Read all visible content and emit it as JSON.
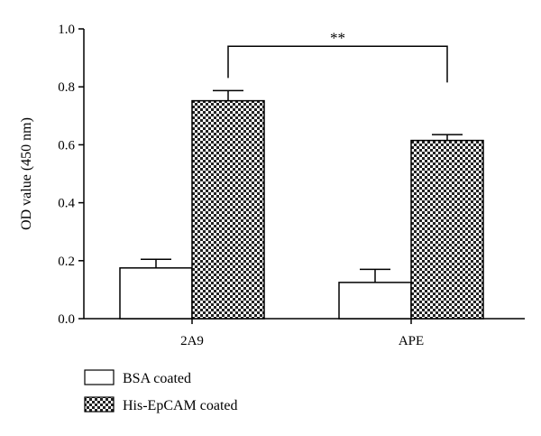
{
  "chart_data": {
    "type": "bar",
    "title": "",
    "xlabel": "",
    "ylabel": "OD value (450 nm)",
    "ylim": [
      0,
      1.0
    ],
    "yticks": [
      0.0,
      0.2,
      0.4,
      0.6,
      0.8,
      1.0
    ],
    "ytick_labels": [
      "0.0",
      "0.2",
      "0.4",
      "0.6",
      "0.8",
      "1.0"
    ],
    "categories": [
      "2A9",
      "APE"
    ],
    "series": [
      {
        "name": "BSA coated",
        "values": [
          0.175,
          0.125
        ],
        "errors": [
          0.03,
          0.045
        ],
        "fill": "#ffffff",
        "pattern": "none"
      },
      {
        "name": "His-EpCAM coated",
        "values": [
          0.752,
          0.615
        ],
        "errors": [
          0.035,
          0.02
        ],
        "fill": "#000000",
        "pattern": "checkerboard"
      }
    ],
    "annotations": [
      {
        "text": "**",
        "type": "significance-bracket",
        "from_category": "2A9",
        "to_category": "APE",
        "series": "His-EpCAM coated",
        "level": 0.94
      }
    ],
    "grid": false,
    "legend_position": "bottom-left"
  }
}
